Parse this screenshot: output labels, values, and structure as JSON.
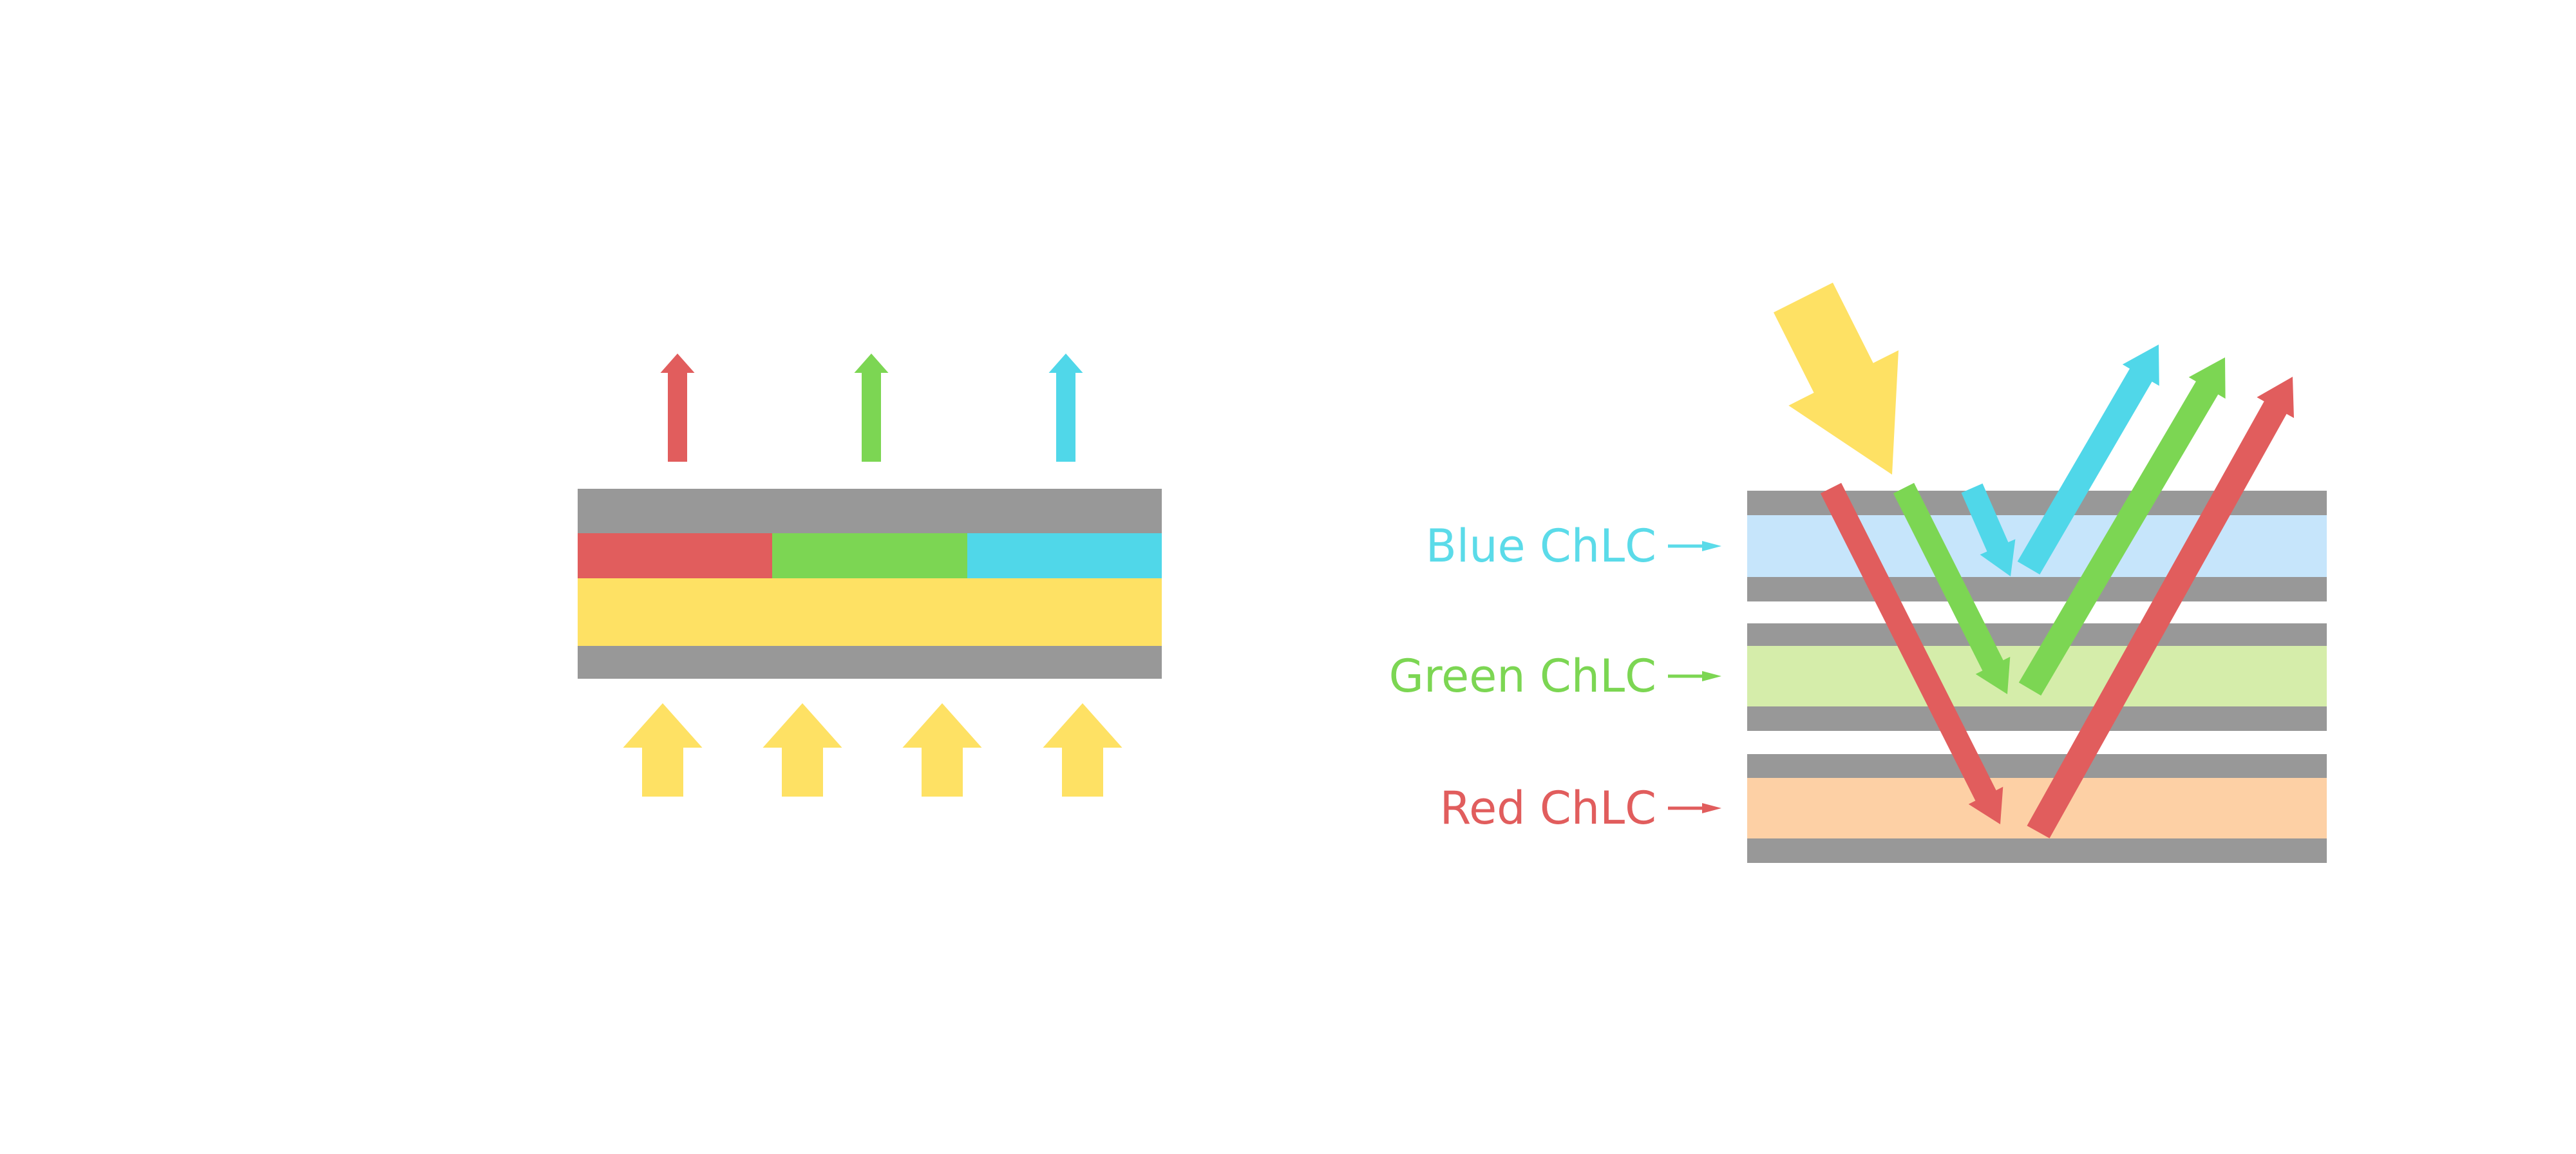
{
  "palette": {
    "gray": "#989898",
    "red": "#e15d5d",
    "green": "#7cd653",
    "cyan": "#50d7e9",
    "yellow": "#fee164",
    "light_blue": "#c6e5fb",
    "light_green": "#d5edaa",
    "light_orange": "#fdd0a5",
    "label_cyan": "#5bdbe9",
    "label_green": "#7cd653",
    "label_red": "#e15d5d"
  },
  "left_diagram": {
    "emitted_arrow_icons": [
      "red-up-arrow-icon",
      "green-up-arrow-icon",
      "cyan-up-arrow-icon"
    ],
    "backlight_arrow_icons": [
      "yellow-up-arrow-icon",
      "yellow-up-arrow-icon",
      "yellow-up-arrow-icon",
      "yellow-up-arrow-icon"
    ]
  },
  "right_diagram": {
    "labels": [
      {
        "text": "Blue ChLC",
        "arrow_icon": "cyan-right-arrow-icon"
      },
      {
        "text": "Green ChLC",
        "arrow_icon": "green-right-arrow-icon"
      },
      {
        "text": "Red ChLC",
        "arrow_icon": "red-right-arrow-icon"
      }
    ],
    "incident_arrow_icon": "yellow-diagonal-down-arrow-icon",
    "descending_arrow_icons": [
      "red-down-arrow-icon",
      "green-down-arrow-icon",
      "cyan-down-arrow-icon"
    ],
    "reflected_arrow_icons": [
      "cyan-reflected-arrow-icon",
      "green-reflected-arrow-icon",
      "red-reflected-arrow-icon"
    ]
  }
}
